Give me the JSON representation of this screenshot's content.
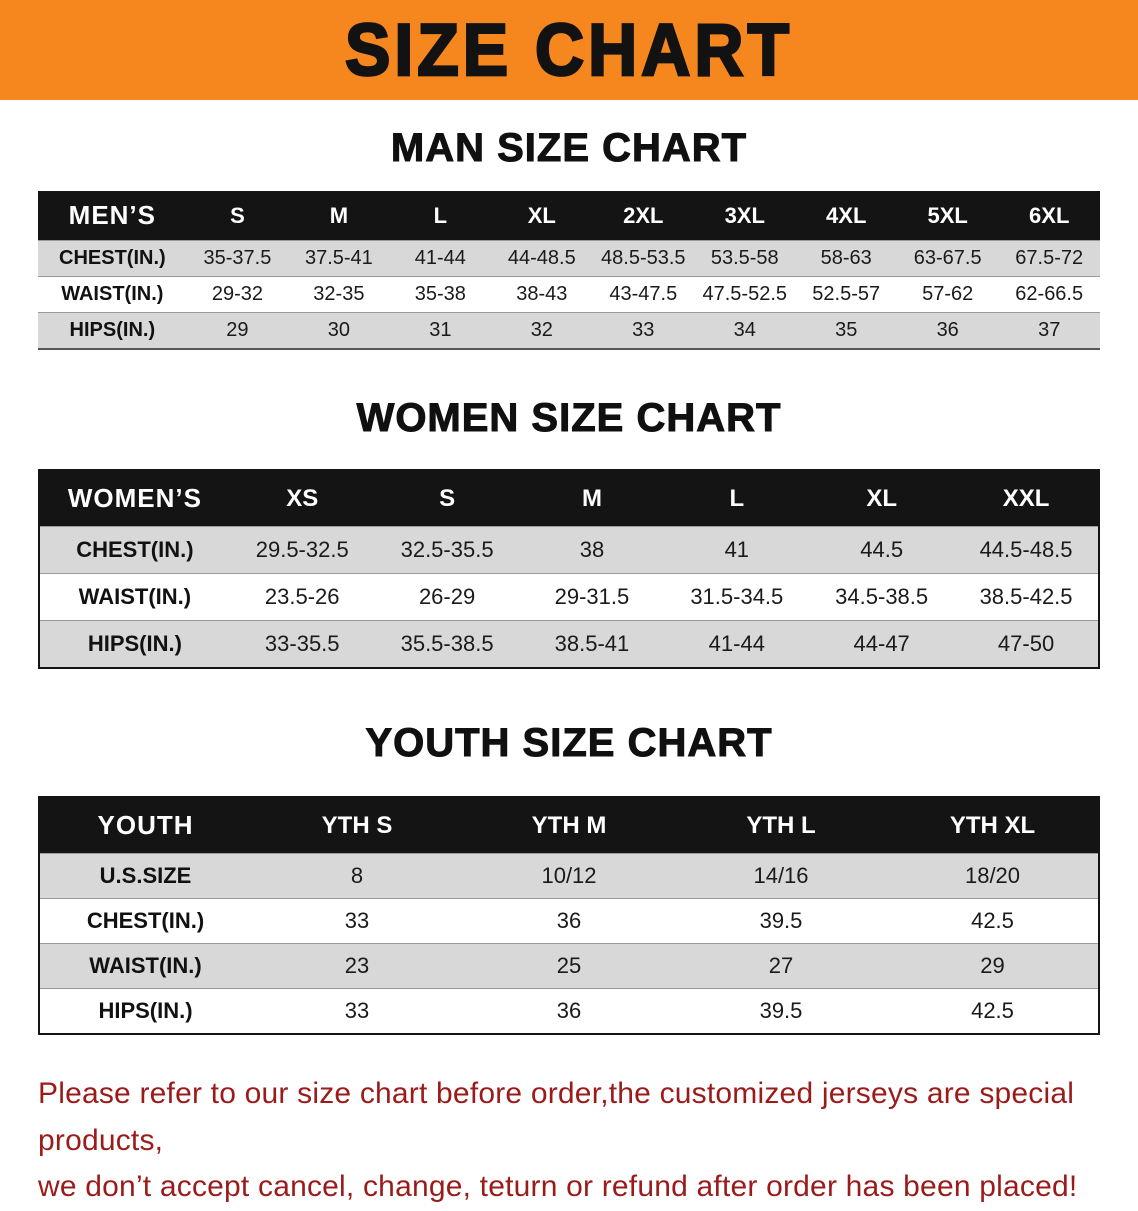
{
  "banner": {
    "title": "SIZE CHART"
  },
  "colors": {
    "banner_bg": "#f6871f",
    "table_header_bg": "#141414",
    "row_stripe": "#d8d8d8",
    "disclaimer_text": "#9b1b1b"
  },
  "sections": [
    {
      "id": "men",
      "title": "MAN SIZE CHART",
      "table": {
        "header": [
          "MEN’S",
          "S",
          "M",
          "L",
          "XL",
          "2XL",
          "3XL",
          "4XL",
          "5XL",
          "6XL"
        ],
        "rows": [
          [
            "CHEST(IN.)",
            "35-37.5",
            "37.5-41",
            "41-44",
            "44-48.5",
            "48.5-53.5",
            "53.5-58",
            "58-63",
            "63-67.5",
            "67.5-72"
          ],
          [
            "WAIST(IN.)",
            "29-32",
            "32-35",
            "35-38",
            "38-43",
            "43-47.5",
            "47.5-52.5",
            "52.5-57",
            "57-62",
            "62-66.5"
          ],
          [
            "HIPS(IN.)",
            "29",
            "30",
            "31",
            "32",
            "33",
            "34",
            "35",
            "36",
            "37"
          ]
        ]
      }
    },
    {
      "id": "women",
      "title": "WOMEN SIZE CHART",
      "table": {
        "header": [
          "WOMEN’S",
          "XS",
          "S",
          "M",
          "L",
          "XL",
          "XXL"
        ],
        "rows": [
          [
            "CHEST(IN.)",
            "29.5-32.5",
            "32.5-35.5",
            "38",
            "41",
            "44.5",
            "44.5-48.5"
          ],
          [
            "WAIST(IN.)",
            "23.5-26",
            "26-29",
            "29-31.5",
            "31.5-34.5",
            "34.5-38.5",
            "38.5-42.5"
          ],
          [
            "HIPS(IN.)",
            "33-35.5",
            "35.5-38.5",
            "38.5-41",
            "41-44",
            "44-47",
            "47-50"
          ]
        ]
      }
    },
    {
      "id": "youth",
      "title": "YOUTH SIZE CHART",
      "table": {
        "header": [
          "YOUTH",
          "YTH S",
          "YTH M",
          "YTH L",
          "YTH XL"
        ],
        "rows": [
          [
            "U.S.SIZE",
            "8",
            "10/12",
            "14/16",
            "18/20"
          ],
          [
            "CHEST(IN.)",
            "33",
            "36",
            "39.5",
            "42.5"
          ],
          [
            "WAIST(IN.)",
            "23",
            "25",
            "27",
            "29"
          ],
          [
            "HIPS(IN.)",
            "33",
            "36",
            "39.5",
            "42.5"
          ]
        ]
      }
    }
  ],
  "footer": {
    "line1": "Please refer to our size chart before order,the customized jerseys are special products,",
    "line2": "we don’t accept cancel, change, teturn or refund after order has been placed!"
  }
}
